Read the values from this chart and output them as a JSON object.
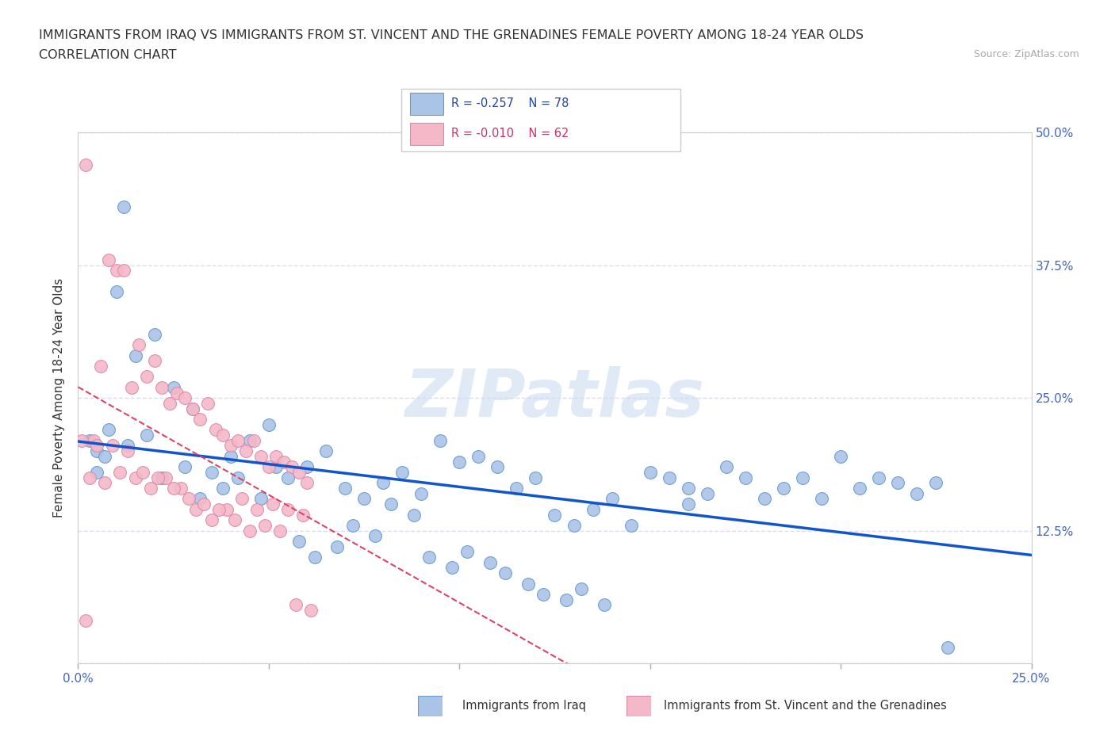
{
  "title_line1": "IMMIGRANTS FROM IRAQ VS IMMIGRANTS FROM ST. VINCENT AND THE GRENADINES FEMALE POVERTY AMONG 18-24 YEAR OLDS",
  "title_line2": "CORRELATION CHART",
  "source_text": "Source: ZipAtlas.com",
  "ylabel": "Female Poverty Among 18-24 Year Olds",
  "xlim": [
    0.0,
    0.25
  ],
  "ylim": [
    0.0,
    0.5
  ],
  "grid_color": "#ddddee",
  "watermark_text": "ZIPatlas",
  "iraq_color": "#aac4e8",
  "iraq_edge_color": "#6699cc",
  "svg_color": "#f4b8c8",
  "svg_edge_color": "#dd88aa",
  "iraq_line_color": "#1155cc",
  "svg_line_color": "#dd4466",
  "iraq_scatter_x": [
    0.005,
    0.012,
    0.005,
    0.008,
    0.01,
    0.015,
    0.02,
    0.025,
    0.03,
    0.035,
    0.04,
    0.045,
    0.05,
    0.055,
    0.06,
    0.065,
    0.07,
    0.075,
    0.08,
    0.085,
    0.09,
    0.095,
    0.1,
    0.105,
    0.11,
    0.115,
    0.12,
    0.125,
    0.13,
    0.135,
    0.14,
    0.145,
    0.15,
    0.155,
    0.16,
    0.165,
    0.17,
    0.175,
    0.18,
    0.185,
    0.19,
    0.195,
    0.2,
    0.205,
    0.21,
    0.215,
    0.22,
    0.225,
    0.003,
    0.007,
    0.013,
    0.018,
    0.022,
    0.028,
    0.032,
    0.038,
    0.042,
    0.048,
    0.052,
    0.058,
    0.062,
    0.068,
    0.072,
    0.078,
    0.082,
    0.088,
    0.092,
    0.098,
    0.102,
    0.108,
    0.112,
    0.118,
    0.122,
    0.128,
    0.132,
    0.138,
    0.228,
    0.16
  ],
  "iraq_scatter_y": [
    0.2,
    0.43,
    0.18,
    0.22,
    0.35,
    0.29,
    0.31,
    0.26,
    0.24,
    0.18,
    0.195,
    0.21,
    0.225,
    0.175,
    0.185,
    0.2,
    0.165,
    0.155,
    0.17,
    0.18,
    0.16,
    0.21,
    0.19,
    0.195,
    0.185,
    0.165,
    0.175,
    0.14,
    0.13,
    0.145,
    0.155,
    0.13,
    0.18,
    0.175,
    0.165,
    0.16,
    0.185,
    0.175,
    0.155,
    0.165,
    0.175,
    0.155,
    0.195,
    0.165,
    0.175,
    0.17,
    0.16,
    0.17,
    0.21,
    0.195,
    0.205,
    0.215,
    0.175,
    0.185,
    0.155,
    0.165,
    0.175,
    0.155,
    0.185,
    0.115,
    0.1,
    0.11,
    0.13,
    0.12,
    0.15,
    0.14,
    0.1,
    0.09,
    0.105,
    0.095,
    0.085,
    0.075,
    0.065,
    0.06,
    0.07,
    0.055,
    0.015,
    0.15
  ],
  "svg_scatter_x": [
    0.002,
    0.004,
    0.006,
    0.008,
    0.01,
    0.012,
    0.014,
    0.016,
    0.018,
    0.02,
    0.022,
    0.024,
    0.026,
    0.028,
    0.03,
    0.032,
    0.034,
    0.036,
    0.038,
    0.04,
    0.042,
    0.044,
    0.046,
    0.048,
    0.05,
    0.052,
    0.054,
    0.056,
    0.058,
    0.06,
    0.003,
    0.007,
    0.011,
    0.015,
    0.019,
    0.023,
    0.027,
    0.031,
    0.035,
    0.039,
    0.043,
    0.047,
    0.051,
    0.055,
    0.059,
    0.001,
    0.005,
    0.009,
    0.013,
    0.017,
    0.021,
    0.025,
    0.029,
    0.033,
    0.037,
    0.041,
    0.045,
    0.049,
    0.053,
    0.057,
    0.061,
    0.002
  ],
  "svg_scatter_y": [
    0.47,
    0.21,
    0.28,
    0.38,
    0.37,
    0.37,
    0.26,
    0.3,
    0.27,
    0.285,
    0.26,
    0.245,
    0.255,
    0.25,
    0.24,
    0.23,
    0.245,
    0.22,
    0.215,
    0.205,
    0.21,
    0.2,
    0.21,
    0.195,
    0.185,
    0.195,
    0.19,
    0.185,
    0.18,
    0.17,
    0.175,
    0.17,
    0.18,
    0.175,
    0.165,
    0.175,
    0.165,
    0.145,
    0.135,
    0.145,
    0.155,
    0.145,
    0.15,
    0.145,
    0.14,
    0.21,
    0.205,
    0.205,
    0.2,
    0.18,
    0.175,
    0.165,
    0.155,
    0.15,
    0.145,
    0.135,
    0.125,
    0.13,
    0.125,
    0.055,
    0.05,
    0.04
  ]
}
